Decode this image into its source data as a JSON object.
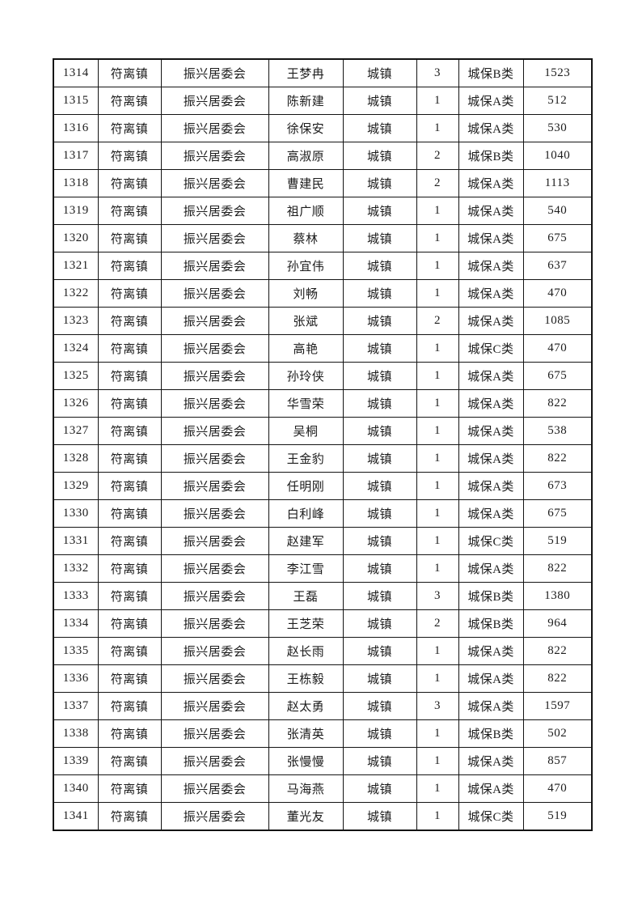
{
  "table": {
    "rows": [
      {
        "seq": "1314",
        "town": "符离镇",
        "committee": "振兴居委会",
        "name": "王梦冉",
        "residence": "城镇",
        "count": "3",
        "category": "城保B类",
        "amount": "1523"
      },
      {
        "seq": "1315",
        "town": "符离镇",
        "committee": "振兴居委会",
        "name": "陈新建",
        "residence": "城镇",
        "count": "1",
        "category": "城保A类",
        "amount": "512"
      },
      {
        "seq": "1316",
        "town": "符离镇",
        "committee": "振兴居委会",
        "name": "徐保安",
        "residence": "城镇",
        "count": "1",
        "category": "城保A类",
        "amount": "530"
      },
      {
        "seq": "1317",
        "town": "符离镇",
        "committee": "振兴居委会",
        "name": "高淑原",
        "residence": "城镇",
        "count": "2",
        "category": "城保B类",
        "amount": "1040"
      },
      {
        "seq": "1318",
        "town": "符离镇",
        "committee": "振兴居委会",
        "name": "曹建民",
        "residence": "城镇",
        "count": "2",
        "category": "城保A类",
        "amount": "1113"
      },
      {
        "seq": "1319",
        "town": "符离镇",
        "committee": "振兴居委会",
        "name": "祖广顺",
        "residence": "城镇",
        "count": "1",
        "category": "城保A类",
        "amount": "540"
      },
      {
        "seq": "1320",
        "town": "符离镇",
        "committee": "振兴居委会",
        "name": "蔡林",
        "residence": "城镇",
        "count": "1",
        "category": "城保A类",
        "amount": "675"
      },
      {
        "seq": "1321",
        "town": "符离镇",
        "committee": "振兴居委会",
        "name": "孙宜伟",
        "residence": "城镇",
        "count": "1",
        "category": "城保A类",
        "amount": "637"
      },
      {
        "seq": "1322",
        "town": "符离镇",
        "committee": "振兴居委会",
        "name": "刘畅",
        "residence": "城镇",
        "count": "1",
        "category": "城保A类",
        "amount": "470"
      },
      {
        "seq": "1323",
        "town": "符离镇",
        "committee": "振兴居委会",
        "name": "张斌",
        "residence": "城镇",
        "count": "2",
        "category": "城保A类",
        "amount": "1085"
      },
      {
        "seq": "1324",
        "town": "符离镇",
        "committee": "振兴居委会",
        "name": "高艳",
        "residence": "城镇",
        "count": "1",
        "category": "城保C类",
        "amount": "470"
      },
      {
        "seq": "1325",
        "town": "符离镇",
        "committee": "振兴居委会",
        "name": "孙玲侠",
        "residence": "城镇",
        "count": "1",
        "category": "城保A类",
        "amount": "675"
      },
      {
        "seq": "1326",
        "town": "符离镇",
        "committee": "振兴居委会",
        "name": "华雪荣",
        "residence": "城镇",
        "count": "1",
        "category": "城保A类",
        "amount": "822"
      },
      {
        "seq": "1327",
        "town": "符离镇",
        "committee": "振兴居委会",
        "name": "吴桐",
        "residence": "城镇",
        "count": "1",
        "category": "城保A类",
        "amount": "538"
      },
      {
        "seq": "1328",
        "town": "符离镇",
        "committee": "振兴居委会",
        "name": "王金豹",
        "residence": "城镇",
        "count": "1",
        "category": "城保A类",
        "amount": "822"
      },
      {
        "seq": "1329",
        "town": "符离镇",
        "committee": "振兴居委会",
        "name": "任明刚",
        "residence": "城镇",
        "count": "1",
        "category": "城保A类",
        "amount": "673"
      },
      {
        "seq": "1330",
        "town": "符离镇",
        "committee": "振兴居委会",
        "name": "白利峰",
        "residence": "城镇",
        "count": "1",
        "category": "城保A类",
        "amount": "675"
      },
      {
        "seq": "1331",
        "town": "符离镇",
        "committee": "振兴居委会",
        "name": "赵建军",
        "residence": "城镇",
        "count": "1",
        "category": "城保C类",
        "amount": "519"
      },
      {
        "seq": "1332",
        "town": "符离镇",
        "committee": "振兴居委会",
        "name": "李江雪",
        "residence": "城镇",
        "count": "1",
        "category": "城保A类",
        "amount": "822"
      },
      {
        "seq": "1333",
        "town": "符离镇",
        "committee": "振兴居委会",
        "name": "王磊",
        "residence": "城镇",
        "count": "3",
        "category": "城保B类",
        "amount": "1380"
      },
      {
        "seq": "1334",
        "town": "符离镇",
        "committee": "振兴居委会",
        "name": "王芝荣",
        "residence": "城镇",
        "count": "2",
        "category": "城保B类",
        "amount": "964"
      },
      {
        "seq": "1335",
        "town": "符离镇",
        "committee": "振兴居委会",
        "name": "赵长雨",
        "residence": "城镇",
        "count": "1",
        "category": "城保A类",
        "amount": "822"
      },
      {
        "seq": "1336",
        "town": "符离镇",
        "committee": "振兴居委会",
        "name": "王栋毅",
        "residence": "城镇",
        "count": "1",
        "category": "城保A类",
        "amount": "822"
      },
      {
        "seq": "1337",
        "town": "符离镇",
        "committee": "振兴居委会",
        "name": "赵太勇",
        "residence": "城镇",
        "count": "3",
        "category": "城保A类",
        "amount": "1597"
      },
      {
        "seq": "1338",
        "town": "符离镇",
        "committee": "振兴居委会",
        "name": "张清英",
        "residence": "城镇",
        "count": "1",
        "category": "城保B类",
        "amount": "502"
      },
      {
        "seq": "1339",
        "town": "符离镇",
        "committee": "振兴居委会",
        "name": "张慢慢",
        "residence": "城镇",
        "count": "1",
        "category": "城保A类",
        "amount": "857"
      },
      {
        "seq": "1340",
        "town": "符离镇",
        "committee": "振兴居委会",
        "name": "马海燕",
        "residence": "城镇",
        "count": "1",
        "category": "城保A类",
        "amount": "470"
      },
      {
        "seq": "1341",
        "town": "符离镇",
        "committee": "振兴居委会",
        "name": "董光友",
        "residence": "城镇",
        "count": "1",
        "category": "城保C类",
        "amount": "519"
      }
    ]
  }
}
